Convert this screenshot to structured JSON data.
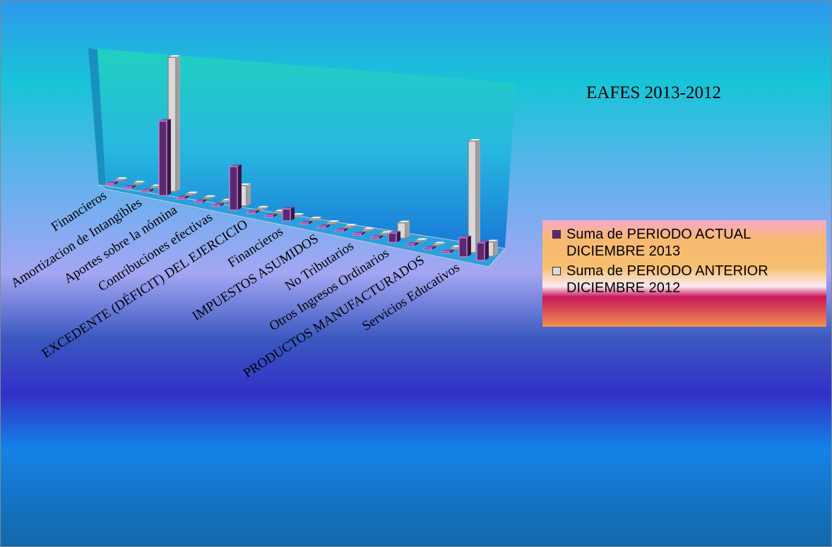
{
  "chart_data": {
    "type": "bar3d",
    "title": "EAFES 2013-2012",
    "categories": [
      "Financieros",
      null,
      "Amortizacion de Intangibles",
      null,
      "Aportes sobre la nómina",
      null,
      "Contribuciones efectivas",
      null,
      "EXCEDENTE (DÉFICIT) DEL EJERCICIO",
      null,
      "Financieros",
      null,
      "IMPUESTOS ASUMIDOS",
      null,
      "No Tributarios",
      null,
      "Otros Ingresos Ordinarios",
      null,
      "PRODUCTOS MANUFACTURADOS",
      null,
      "Servicios Educativos",
      null
    ],
    "series": [
      {
        "name": "Suma de PERIODO ACTUAL DICIEMBRE 2013",
        "color": "#5a2a6e",
        "values": [
          0.1,
          0.1,
          0.1,
          5.3,
          0.1,
          0.1,
          0.1,
          3,
          0.1,
          0.1,
          0.8,
          0.1,
          0.1,
          0.1,
          0.1,
          0.1,
          0.6,
          0.1,
          0.1,
          0.1,
          1.2,
          1.1
        ]
      },
      {
        "name": "Suma de PERIODO ANTERIOR DICIEMBRE 2012",
        "color": "#d9d9d9",
        "values": [
          0.1,
          0.1,
          0.1,
          9.5,
          0.1,
          0.1,
          0.1,
          1.4,
          0.1,
          0.1,
          0.1,
          0.1,
          0.1,
          0.1,
          0.1,
          0.1,
          1,
          0.1,
          0.1,
          0.1,
          7,
          0.9
        ]
      }
    ],
    "ylim": [
      0,
      10
    ],
    "gridlines": [
      0,
      1,
      2,
      3,
      4,
      5,
      6,
      7,
      8,
      9,
      10
    ],
    "legend": "right"
  }
}
